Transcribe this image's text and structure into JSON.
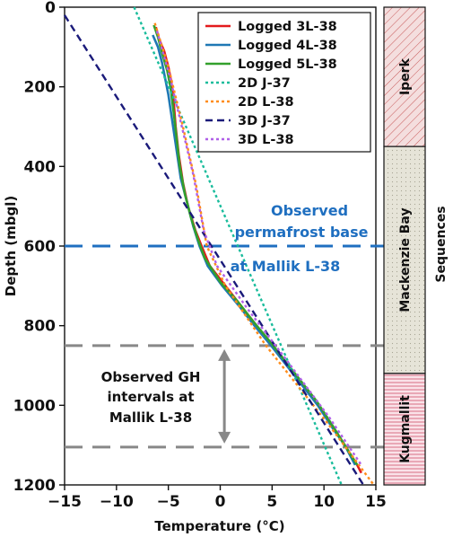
{
  "chart_data": {
    "type": "line",
    "xlabel": "Temperature (°C)",
    "ylabel": "Depth (mbgl)",
    "xlim": [
      -15,
      15
    ],
    "ylim": [
      1200,
      0
    ],
    "y_inverted": true,
    "xticks": [
      -15,
      -10,
      -5,
      0,
      5,
      10,
      15
    ],
    "yticks": [
      0,
      200,
      400,
      600,
      800,
      1000,
      1200
    ],
    "legend_position": "top-right",
    "series": [
      {
        "name": "Logged 3L-38",
        "style": "solid",
        "color": "#e31a1c",
        "points": [
          [
            -6.2,
            50
          ],
          [
            -5.9,
            80
          ],
          [
            -5.4,
            110
          ],
          [
            -5.0,
            150
          ],
          [
            -4.7,
            190
          ],
          [
            -4.5,
            230
          ],
          [
            -4.3,
            300
          ],
          [
            -4.0,
            370
          ],
          [
            -3.6,
            440
          ],
          [
            -3.1,
            500
          ],
          [
            -2.4,
            560
          ],
          [
            -1.8,
            600
          ],
          [
            -1.0,
            650
          ],
          [
            0.5,
            700
          ],
          [
            2.0,
            750
          ],
          [
            3.5,
            800
          ],
          [
            5.0,
            850
          ],
          [
            6.5,
            900
          ],
          [
            8.0,
            950
          ],
          [
            9.5,
            1000
          ],
          [
            11.0,
            1060
          ],
          [
            12.0,
            1100
          ],
          [
            13.2,
            1150
          ],
          [
            13.6,
            1170
          ]
        ]
      },
      {
        "name": "Logged 4L-38",
        "style": "solid",
        "color": "#1f78b4",
        "points": [
          [
            -6.5,
            70
          ],
          [
            -6.0,
            100
          ],
          [
            -5.6,
            140
          ],
          [
            -5.3,
            180
          ],
          [
            -5.0,
            220
          ],
          [
            -4.6,
            290
          ],
          [
            -4.2,
            360
          ],
          [
            -3.8,
            430
          ],
          [
            -3.2,
            490
          ],
          [
            -2.6,
            550
          ],
          [
            -2.0,
            600
          ],
          [
            -1.2,
            650
          ],
          [
            0.2,
            700
          ],
          [
            1.8,
            750
          ],
          [
            3.3,
            800
          ],
          [
            4.9,
            850
          ],
          [
            6.4,
            900
          ],
          [
            7.9,
            950
          ],
          [
            9.4,
            1000
          ],
          [
            10.9,
            1060
          ],
          [
            12.0,
            1100
          ],
          [
            13.0,
            1150
          ]
        ]
      },
      {
        "name": "Logged 5L-38",
        "style": "solid",
        "color": "#33a02c",
        "points": [
          [
            -6.4,
            45
          ],
          [
            -6.0,
            75
          ],
          [
            -5.6,
            115
          ],
          [
            -5.1,
            160
          ],
          [
            -4.8,
            200
          ],
          [
            -4.5,
            260
          ],
          [
            -4.2,
            330
          ],
          [
            -3.9,
            400
          ],
          [
            -3.4,
            470
          ],
          [
            -2.8,
            530
          ],
          [
            -2.2,
            580
          ],
          [
            -1.5,
            630
          ],
          [
            0.0,
            690
          ],
          [
            1.7,
            740
          ],
          [
            3.2,
            790
          ],
          [
            4.8,
            840
          ],
          [
            6.3,
            890
          ],
          [
            7.8,
            940
          ],
          [
            9.3,
            990
          ],
          [
            10.8,
            1050
          ],
          [
            12.0,
            1100
          ],
          [
            13.2,
            1150
          ]
        ]
      },
      {
        "name": "2D J-37",
        "style": "dotted",
        "color": "#1abc9c",
        "points": [
          [
            -8.3,
            0
          ],
          [
            11.7,
            1200
          ]
        ]
      },
      {
        "name": "2D L-38",
        "style": "dotted",
        "color": "#ff8c1a",
        "points": [
          [
            -6.3,
            40
          ],
          [
            -5.0,
            150
          ],
          [
            -3.6,
            300
          ],
          [
            -2.3,
            450
          ],
          [
            -1.3,
            600
          ],
          [
            0.5,
            700
          ],
          [
            4.4,
            850
          ],
          [
            10.5,
            1050
          ],
          [
            14.8,
            1200
          ]
        ]
      },
      {
        "name": "3D J-37",
        "style": "dashed",
        "color": "#1a1a7a",
        "points": [
          [
            -15,
            20
          ],
          [
            13.8,
            1200
          ]
        ]
      },
      {
        "name": "3D L-38",
        "style": "dotted",
        "color": "#b060e8",
        "points": [
          [
            -6.1,
            60
          ],
          [
            -4.9,
            170
          ],
          [
            -3.7,
            300
          ],
          [
            -2.6,
            420
          ],
          [
            -1.6,
            560
          ],
          [
            -0.3,
            650
          ],
          [
            2.7,
            760
          ],
          [
            6.5,
            890
          ],
          [
            10.5,
            1030
          ],
          [
            13.6,
            1150
          ]
        ]
      }
    ],
    "reference_lines": [
      {
        "depth": 600,
        "color": "#1f6fc0",
        "style": "dashed"
      },
      {
        "depth": 850,
        "color": "#888888",
        "style": "dashed"
      },
      {
        "depth": 1105,
        "color": "#888888",
        "style": "dashed"
      }
    ],
    "annotations": {
      "permafrost_line1": "Observed",
      "permafrost_line2": "permafrost base",
      "permafrost_line3": "at Mallik L-38",
      "gh_line1": "Observed GH",
      "gh_line2": "intervals at",
      "gh_line3": "Mallik L-38"
    },
    "gh_interval": [
      850,
      1105
    ],
    "sequences_title": "Sequences",
    "sequences": [
      {
        "name": "Iperk",
        "top": 0,
        "bottom": 350,
        "fill": "#f4dede",
        "hatch": "#c85a5a"
      },
      {
        "name": "Mackenzie Bay",
        "top": 350,
        "bottom": 920,
        "fill": "#e6e4d8",
        "hatch": "#a8a593"
      },
      {
        "name": "Kugmallit",
        "top": 920,
        "bottom": 1200,
        "fill": "#fae2e8",
        "hatch": "#d0506a"
      }
    ]
  }
}
